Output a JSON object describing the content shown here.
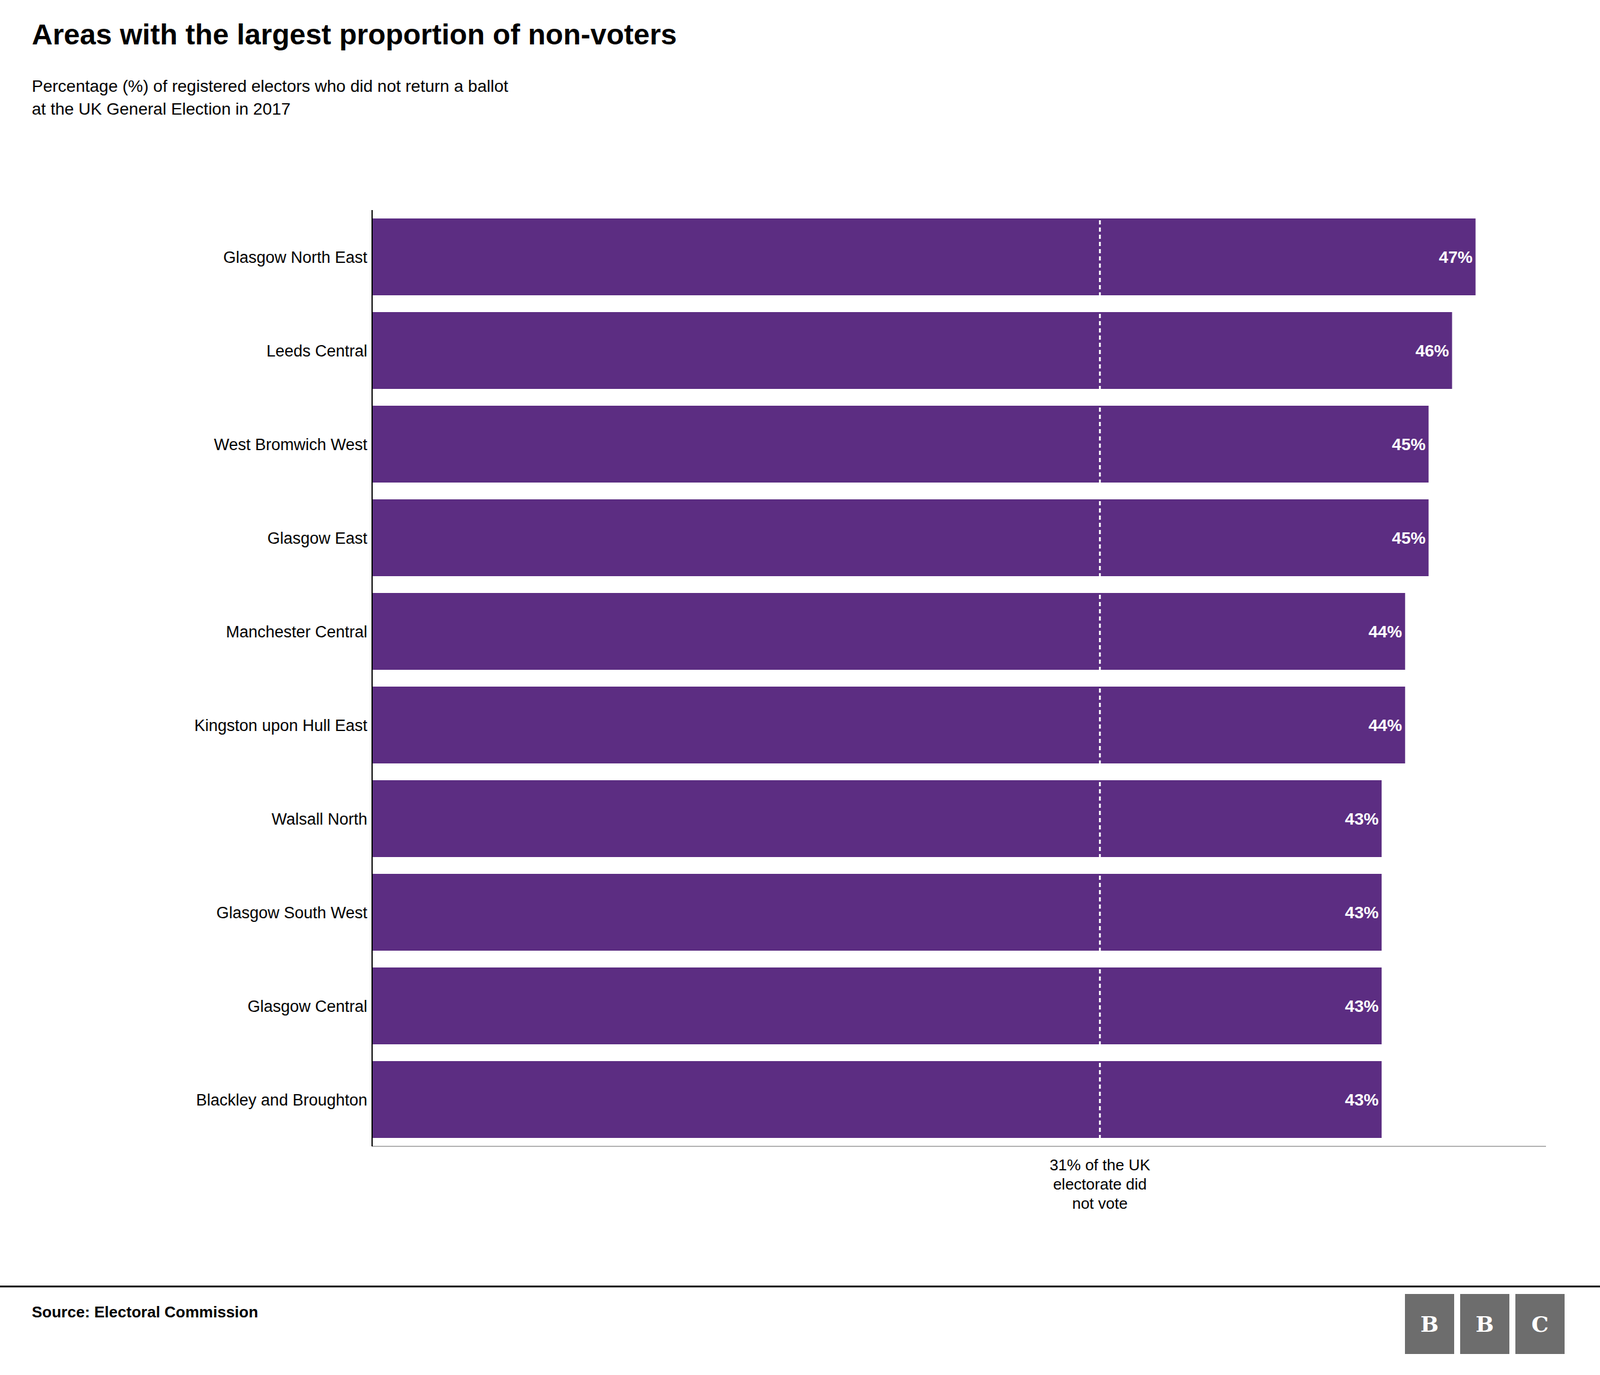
{
  "chart_data": {
    "type": "bar",
    "orientation": "horizontal",
    "title": "Areas with the largest proportion of non-voters",
    "subtitle": "Percentage (%) of registered electors who did not return a ballot\nat the UK General Election in 2017",
    "categories": [
      "Glasgow North East",
      "Leeds Central",
      "West Bromwich West",
      "Glasgow East",
      "Manchester Central",
      "Kingston upon Hull East",
      "Walsall North",
      "Glasgow South West",
      "Glasgow Central",
      "Blackley and Broughton"
    ],
    "values": [
      47,
      46,
      45,
      45,
      44,
      44,
      43,
      43,
      43,
      43
    ],
    "value_labels": [
      "47%",
      "46%",
      "45%",
      "45%",
      "44%",
      "44%",
      "43%",
      "43%",
      "43%",
      "43%"
    ],
    "data_labels": true,
    "color": "#5c2d82",
    "xlim": [
      0,
      50
    ],
    "tick_labels": "y",
    "grid": false,
    "annotations": [
      {
        "x": 31,
        "text": "31% of the UK\nelectorate did\nnot vote"
      }
    ],
    "source": "Source: Electoral Commission",
    "logo": "BBC"
  }
}
